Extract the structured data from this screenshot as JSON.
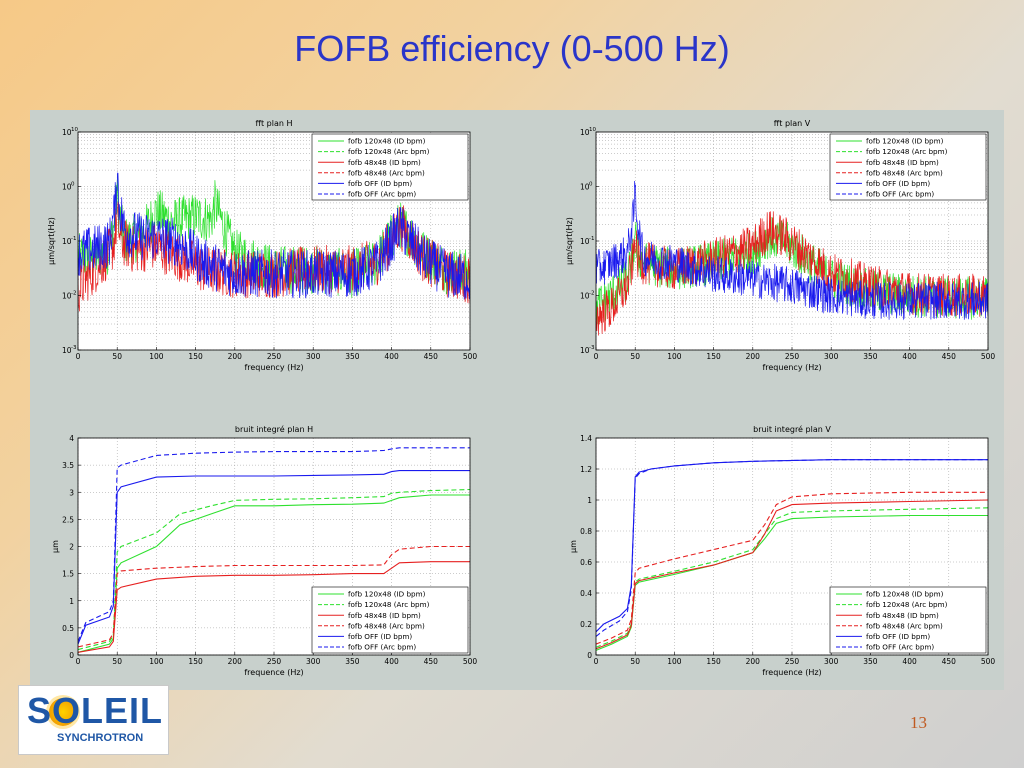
{
  "slide": {
    "title": "FOFB efficiency (0-500 Hz)",
    "page_number": "13"
  },
  "logo": {
    "text": "SOLEIL",
    "subtitle": "SYNCHROTRON"
  },
  "colors": {
    "green": "#2fe02f",
    "red": "#e62020",
    "blue": "#1a1aee",
    "panel_bg": "#c8d0cc",
    "plot_bg": "#ffffff",
    "title": "#2a35c9"
  },
  "legend_entries": [
    {
      "label": "fofb 120x48 (ID bpm)",
      "color": "green",
      "dash": false
    },
    {
      "label": "fofb 120x48 (Arc bpm)",
      "color": "green",
      "dash": true
    },
    {
      "label": "fofb 48x48 (ID bpm)",
      "color": "red",
      "dash": false
    },
    {
      "label": "fofb 48x48 (Arc bpm)",
      "color": "red",
      "dash": true
    },
    {
      "label": "fofb OFF (ID bpm)",
      "color": "blue",
      "dash": false
    },
    {
      "label": "fofb OFF (Arc bpm)",
      "color": "blue",
      "dash": true
    }
  ],
  "chart_data": [
    {
      "type": "line",
      "title": "fft plan H",
      "xlabel": "frequency (Hz)",
      "ylabel": "μm/sqrt(Hz)",
      "xlim": [
        0,
        500
      ],
      "xticks": [
        0,
        50,
        100,
        150,
        200,
        250,
        300,
        350,
        400,
        450,
        500
      ],
      "ylog": true,
      "ylim": [
        0.001,
        10
      ],
      "ytick_labels": [
        "10",
        "0",
        "-1",
        "-2",
        "-3"
      ],
      "grid": true,
      "legend": "top-right",
      "series": [
        {
          "name": "fofb 120x48 (ID bpm)",
          "color": "green",
          "noise": 0.45,
          "x": [
            0,
            20,
            40,
            48,
            50,
            52,
            60,
            80,
            100,
            120,
            150,
            170,
            175,
            185,
            200,
            250,
            300,
            350,
            380,
            400,
            410,
            420,
            440,
            470,
            500
          ],
          "y": [
            0.05,
            0.05,
            0.07,
            0.3,
            0.9,
            0.3,
            0.1,
            0.12,
            0.35,
            0.22,
            0.28,
            0.25,
            0.5,
            0.2,
            0.06,
            0.03,
            0.03,
            0.025,
            0.04,
            0.12,
            0.2,
            0.15,
            0.06,
            0.03,
            0.025
          ]
        },
        {
          "name": "fofb 48x48 (ID bpm)",
          "color": "red",
          "noise": 0.45,
          "x": [
            0,
            10,
            30,
            45,
            50,
            55,
            70,
            100,
            130,
            160,
            200,
            250,
            300,
            350,
            380,
            400,
            410,
            420,
            440,
            470,
            500
          ],
          "y": [
            0.012,
            0.02,
            0.04,
            0.08,
            0.25,
            0.1,
            0.07,
            0.08,
            0.05,
            0.03,
            0.025,
            0.025,
            0.03,
            0.03,
            0.04,
            0.1,
            0.2,
            0.14,
            0.05,
            0.025,
            0.02
          ]
        },
        {
          "name": "fofb OFF (ID bpm)",
          "color": "blue",
          "noise": 0.45,
          "x": [
            0,
            20,
            40,
            48,
            50,
            52,
            60,
            80,
            100,
            130,
            160,
            200,
            250,
            300,
            350,
            380,
            400,
            410,
            420,
            440,
            470,
            500
          ],
          "y": [
            0.06,
            0.07,
            0.09,
            0.5,
            2.5,
            0.5,
            0.15,
            0.12,
            0.12,
            0.09,
            0.04,
            0.025,
            0.025,
            0.025,
            0.025,
            0.035,
            0.1,
            0.18,
            0.12,
            0.05,
            0.025,
            0.02
          ]
        }
      ]
    },
    {
      "type": "line",
      "title": "fft plan V",
      "xlabel": "frequency (Hz)",
      "ylabel": "μm/sqrt(Hz)",
      "xlim": [
        0,
        500
      ],
      "xticks": [
        0,
        50,
        100,
        150,
        200,
        250,
        300,
        350,
        400,
        450,
        500
      ],
      "ylog": true,
      "ylim": [
        0.001,
        10
      ],
      "ytick_labels": [
        "10",
        "0",
        "-1",
        "-2",
        "-3"
      ],
      "grid": true,
      "legend": "top-right",
      "series": [
        {
          "name": "fofb 120x48 (ID bpm)",
          "color": "green",
          "noise": 0.4,
          "x": [
            0,
            20,
            40,
            48,
            50,
            52,
            60,
            100,
            150,
            200,
            220,
            240,
            260,
            300,
            350,
            400,
            450,
            500
          ],
          "y": [
            0.006,
            0.01,
            0.02,
            0.06,
            0.2,
            0.06,
            0.04,
            0.03,
            0.04,
            0.06,
            0.12,
            0.1,
            0.06,
            0.02,
            0.012,
            0.01,
            0.009,
            0.009
          ]
        },
        {
          "name": "fofb 48x48 (ID bpm)",
          "color": "red",
          "noise": 0.4,
          "x": [
            0,
            20,
            40,
            48,
            50,
            52,
            60,
            100,
            150,
            200,
            220,
            240,
            260,
            300,
            350,
            400,
            450,
            500
          ],
          "y": [
            0.004,
            0.006,
            0.015,
            0.05,
            0.15,
            0.05,
            0.04,
            0.03,
            0.045,
            0.08,
            0.16,
            0.12,
            0.07,
            0.025,
            0.015,
            0.011,
            0.01,
            0.01
          ]
        },
        {
          "name": "fofb OFF (ID bpm)",
          "color": "blue",
          "noise": 0.35,
          "x": [
            0,
            20,
            40,
            48,
            50,
            52,
            60,
            100,
            150,
            200,
            250,
            300,
            350,
            400,
            450,
            500
          ],
          "y": [
            0.03,
            0.04,
            0.06,
            0.3,
            1.0,
            0.3,
            0.05,
            0.04,
            0.025,
            0.02,
            0.015,
            0.01,
            0.008,
            0.008,
            0.008,
            0.008
          ]
        }
      ]
    },
    {
      "type": "line",
      "title": "bruit integré plan H",
      "xlabel": "frequence (Hz)",
      "ylabel": "μm",
      "xlim": [
        0,
        500
      ],
      "xticks": [
        0,
        50,
        100,
        150,
        200,
        250,
        300,
        350,
        400,
        450,
        500
      ],
      "ylim": [
        0,
        4
      ],
      "yticks": [
        0,
        0.5,
        1,
        1.5,
        2,
        2.5,
        3,
        3.5,
        4
      ],
      "grid": true,
      "legend": "bottom-right",
      "series": [
        {
          "name": "fofb 120x48 (ID bpm)",
          "color": "green",
          "dash": false,
          "x": [
            0,
            40,
            45,
            50,
            55,
            100,
            130,
            170,
            200,
            250,
            300,
            350,
            390,
            400,
            410,
            450,
            500
          ],
          "y": [
            0.05,
            0.2,
            0.3,
            1.6,
            1.7,
            2.0,
            2.4,
            2.6,
            2.75,
            2.75,
            2.77,
            2.78,
            2.8,
            2.85,
            2.9,
            2.95,
            2.95
          ]
        },
        {
          "name": "fofb 120x48 (Arc bpm)",
          "color": "green",
          "dash": true,
          "x": [
            0,
            40,
            45,
            50,
            55,
            100,
            130,
            170,
            200,
            250,
            300,
            350,
            390,
            400,
            410,
            450,
            500
          ],
          "y": [
            0.1,
            0.25,
            0.35,
            1.9,
            2.0,
            2.25,
            2.6,
            2.75,
            2.85,
            2.87,
            2.88,
            2.9,
            2.92,
            2.98,
            3.0,
            3.03,
            3.05
          ]
        },
        {
          "name": "fofb 48x48 (ID bpm)",
          "color": "red",
          "dash": false,
          "x": [
            0,
            40,
            45,
            50,
            55,
            100,
            150,
            200,
            250,
            300,
            350,
            390,
            400,
            410,
            450,
            500
          ],
          "y": [
            0.05,
            0.15,
            0.25,
            1.2,
            1.25,
            1.4,
            1.45,
            1.47,
            1.47,
            1.48,
            1.5,
            1.5,
            1.6,
            1.7,
            1.72,
            1.72
          ]
        },
        {
          "name": "fofb 48x48 (Arc bpm)",
          "color": "red",
          "dash": true,
          "x": [
            0,
            40,
            45,
            50,
            55,
            100,
            150,
            200,
            250,
            300,
            350,
            390,
            400,
            410,
            450,
            500
          ],
          "y": [
            0.15,
            0.28,
            0.4,
            1.5,
            1.55,
            1.6,
            1.63,
            1.65,
            1.65,
            1.65,
            1.65,
            1.66,
            1.85,
            1.95,
            2.0,
            2.0
          ]
        },
        {
          "name": "fofb OFF (ID bpm)",
          "color": "blue",
          "dash": false,
          "x": [
            0,
            10,
            40,
            45,
            50,
            55,
            100,
            150,
            200,
            250,
            300,
            350,
            390,
            400,
            410,
            450,
            500
          ],
          "y": [
            0.2,
            0.55,
            0.7,
            0.9,
            3.0,
            3.1,
            3.28,
            3.3,
            3.3,
            3.3,
            3.31,
            3.32,
            3.33,
            3.38,
            3.4,
            3.4,
            3.4
          ]
        },
        {
          "name": "fofb OFF (Arc bpm)",
          "color": "blue",
          "dash": true,
          "x": [
            0,
            10,
            40,
            45,
            50,
            55,
            100,
            150,
            200,
            250,
            300,
            350,
            390,
            400,
            410,
            450,
            500
          ],
          "y": [
            0.25,
            0.6,
            0.8,
            1.0,
            3.45,
            3.5,
            3.68,
            3.72,
            3.74,
            3.75,
            3.75,
            3.75,
            3.77,
            3.8,
            3.82,
            3.82,
            3.82
          ]
        }
      ]
    },
    {
      "type": "line",
      "title": "bruit integré plan V",
      "xlabel": "frequence (Hz)",
      "ylabel": "μm",
      "xlim": [
        0,
        500
      ],
      "xticks": [
        0,
        50,
        100,
        150,
        200,
        250,
        300,
        350,
        400,
        450,
        500
      ],
      "ylim": [
        0,
        1.4
      ],
      "yticks": [
        0,
        0.2,
        0.4,
        0.6,
        0.8,
        1,
        1.2,
        1.4
      ],
      "grid": true,
      "legend": "bottom-right",
      "series": [
        {
          "name": "fofb 120x48 (ID bpm)",
          "color": "green",
          "dash": false,
          "x": [
            0,
            20,
            40,
            45,
            50,
            55,
            100,
            150,
            200,
            215,
            230,
            250,
            300,
            400,
            500
          ],
          "y": [
            0.03,
            0.07,
            0.12,
            0.18,
            0.45,
            0.47,
            0.52,
            0.58,
            0.66,
            0.75,
            0.85,
            0.88,
            0.89,
            0.9,
            0.9
          ]
        },
        {
          "name": "fofb 120x48 (Arc bpm)",
          "color": "green",
          "dash": true,
          "x": [
            0,
            20,
            40,
            45,
            50,
            55,
            100,
            150,
            200,
            215,
            230,
            250,
            300,
            400,
            500
          ],
          "y": [
            0.05,
            0.09,
            0.14,
            0.2,
            0.47,
            0.49,
            0.54,
            0.6,
            0.68,
            0.78,
            0.88,
            0.92,
            0.93,
            0.94,
            0.95
          ]
        },
        {
          "name": "fofb 48x48 (ID bpm)",
          "color": "red",
          "dash": false,
          "x": [
            0,
            20,
            40,
            45,
            50,
            55,
            100,
            150,
            200,
            215,
            230,
            250,
            300,
            400,
            500
          ],
          "y": [
            0.04,
            0.08,
            0.13,
            0.19,
            0.46,
            0.48,
            0.53,
            0.58,
            0.66,
            0.78,
            0.93,
            0.97,
            0.98,
            0.99,
            1.0
          ]
        },
        {
          "name": "fofb 48x48 (Arc bpm)",
          "color": "red",
          "dash": true,
          "x": [
            0,
            20,
            40,
            45,
            50,
            55,
            100,
            150,
            200,
            215,
            230,
            250,
            300,
            400,
            500
          ],
          "y": [
            0.07,
            0.11,
            0.16,
            0.23,
            0.53,
            0.56,
            0.62,
            0.68,
            0.74,
            0.84,
            0.97,
            1.02,
            1.04,
            1.05,
            1.05
          ]
        },
        {
          "name": "fofb OFF (ID bpm)",
          "color": "blue",
          "dash": false,
          "x": [
            0,
            10,
            30,
            40,
            45,
            50,
            55,
            70,
            100,
            150,
            200,
            300,
            400,
            500
          ],
          "y": [
            0.15,
            0.2,
            0.25,
            0.3,
            0.45,
            1.15,
            1.18,
            1.2,
            1.22,
            1.24,
            1.25,
            1.26,
            1.26,
            1.26
          ]
        },
        {
          "name": "fofb OFF (Arc bpm)",
          "color": "blue",
          "dash": true,
          "x": [
            0,
            10,
            30,
            40,
            45,
            50,
            55,
            70,
            100,
            150,
            200,
            300,
            400,
            500
          ],
          "y": [
            0.12,
            0.16,
            0.22,
            0.28,
            0.42,
            1.14,
            1.17,
            1.2,
            1.22,
            1.24,
            1.25,
            1.26,
            1.26,
            1.26
          ]
        }
      ]
    }
  ]
}
